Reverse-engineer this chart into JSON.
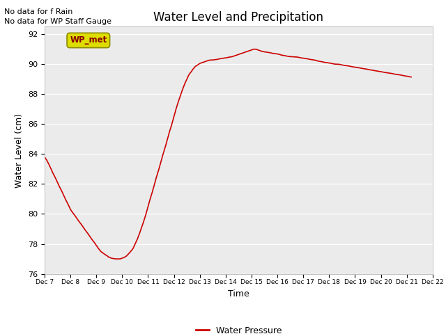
{
  "title": "Water Level and Precipitation",
  "xlabel": "Time",
  "ylabel": "Water Level (cm)",
  "ylim": [
    76,
    92.5
  ],
  "yticks": [
    76,
    78,
    80,
    82,
    84,
    86,
    88,
    90,
    92
  ],
  "bg_color": "#ebebeb",
  "line_color": "#cc0000",
  "legend_label": "Water Pressure",
  "legend_line_color": "#cc0000",
  "no_data_texts": [
    "No data for f Rain",
    "No data for WP Staff Gauge"
  ],
  "wp_met_label": "WP_met",
  "wp_met_bg": "#dddd00",
  "wp_met_fg": "#880000",
  "water_pressure_x": [
    7.0,
    7.08,
    7.17,
    7.25,
    7.33,
    7.42,
    7.5,
    7.58,
    7.67,
    7.75,
    7.83,
    7.92,
    8.0,
    8.08,
    8.17,
    8.25,
    8.33,
    8.42,
    8.5,
    8.58,
    8.67,
    8.75,
    8.83,
    8.92,
    9.0,
    9.08,
    9.17,
    9.25,
    9.33,
    9.42,
    9.5,
    9.58,
    9.67,
    9.75,
    9.83,
    9.92,
    10.0,
    10.08,
    10.17,
    10.25,
    10.33,
    10.42,
    10.5,
    10.58,
    10.67,
    10.75,
    10.83,
    10.92,
    11.0,
    11.08,
    11.17,
    11.25,
    11.33,
    11.42,
    11.5,
    11.58,
    11.67,
    11.75,
    11.83,
    11.92,
    12.0,
    12.08,
    12.17,
    12.25,
    12.33,
    12.42,
    12.5,
    12.58,
    12.67,
    12.75,
    12.83,
    12.92,
    13.0,
    13.08,
    13.17,
    13.25,
    13.33,
    13.42,
    13.5,
    13.58,
    13.67,
    13.75,
    13.83,
    13.92,
    14.0,
    14.08,
    14.17,
    14.25,
    14.33,
    14.42,
    14.5,
    14.58,
    14.67,
    14.75,
    14.83,
    14.92,
    15.0,
    15.08,
    15.17,
    15.25,
    15.33,
    15.42,
    15.5,
    15.58,
    15.67,
    15.75,
    15.83,
    15.92,
    16.0,
    16.08,
    16.17,
    16.25,
    16.33,
    16.42,
    16.5,
    16.58,
    16.67,
    16.75,
    16.83,
    16.92,
    17.0,
    17.08,
    17.17,
    17.25,
    17.33,
    17.42,
    17.5,
    17.58,
    17.67,
    17.75,
    17.83,
    17.92,
    18.0,
    18.08,
    18.17,
    18.25,
    18.33,
    18.42,
    18.5,
    18.58,
    18.67,
    18.75,
    18.83,
    18.92,
    19.0,
    19.08,
    19.17,
    19.25,
    19.33,
    19.42,
    19.5,
    19.58,
    19.67,
    19.75,
    19.83,
    19.92,
    20.0,
    20.08,
    20.17,
    20.25,
    20.33,
    20.42,
    20.5,
    20.58,
    20.67,
    20.75,
    20.83,
    20.92,
    21.0,
    21.08,
    21.17
  ],
  "water_pressure_y": [
    83.8,
    83.6,
    83.3,
    83.0,
    82.7,
    82.4,
    82.1,
    81.8,
    81.5,
    81.2,
    80.9,
    80.6,
    80.3,
    80.1,
    79.9,
    79.7,
    79.5,
    79.3,
    79.1,
    78.9,
    78.7,
    78.5,
    78.3,
    78.1,
    77.9,
    77.7,
    77.5,
    77.4,
    77.3,
    77.2,
    77.1,
    77.05,
    77.02,
    77.0,
    77.0,
    77.0,
    77.05,
    77.1,
    77.2,
    77.35,
    77.5,
    77.7,
    78.0,
    78.3,
    78.7,
    79.1,
    79.5,
    80.0,
    80.5,
    81.0,
    81.5,
    82.0,
    82.5,
    83.0,
    83.5,
    84.0,
    84.5,
    85.0,
    85.5,
    86.0,
    86.5,
    87.0,
    87.5,
    87.9,
    88.3,
    88.7,
    89.0,
    89.3,
    89.5,
    89.7,
    89.85,
    89.95,
    90.05,
    90.1,
    90.15,
    90.2,
    90.25,
    90.28,
    90.28,
    90.3,
    90.32,
    90.35,
    90.38,
    90.4,
    90.42,
    90.45,
    90.48,
    90.5,
    90.55,
    90.6,
    90.65,
    90.7,
    90.75,
    90.8,
    90.85,
    90.9,
    90.95,
    91.0,
    91.0,
    90.95,
    90.9,
    90.85,
    90.82,
    90.8,
    90.78,
    90.75,
    90.72,
    90.7,
    90.68,
    90.65,
    90.6,
    90.58,
    90.55,
    90.52,
    90.5,
    90.5,
    90.48,
    90.48,
    90.45,
    90.42,
    90.4,
    90.38,
    90.35,
    90.32,
    90.3,
    90.28,
    90.25,
    90.2,
    90.18,
    90.15,
    90.12,
    90.1,
    90.08,
    90.05,
    90.02,
    90.0,
    90.0,
    89.98,
    89.95,
    89.92,
    89.9,
    89.88,
    89.85,
    89.82,
    89.8,
    89.78,
    89.75,
    89.72,
    89.7,
    89.68,
    89.65,
    89.62,
    89.6,
    89.57,
    89.55,
    89.52,
    89.5,
    89.47,
    89.44,
    89.42,
    89.4,
    89.38,
    89.35,
    89.32,
    89.3,
    89.28,
    89.25,
    89.22,
    89.2,
    89.17,
    89.14
  ]
}
